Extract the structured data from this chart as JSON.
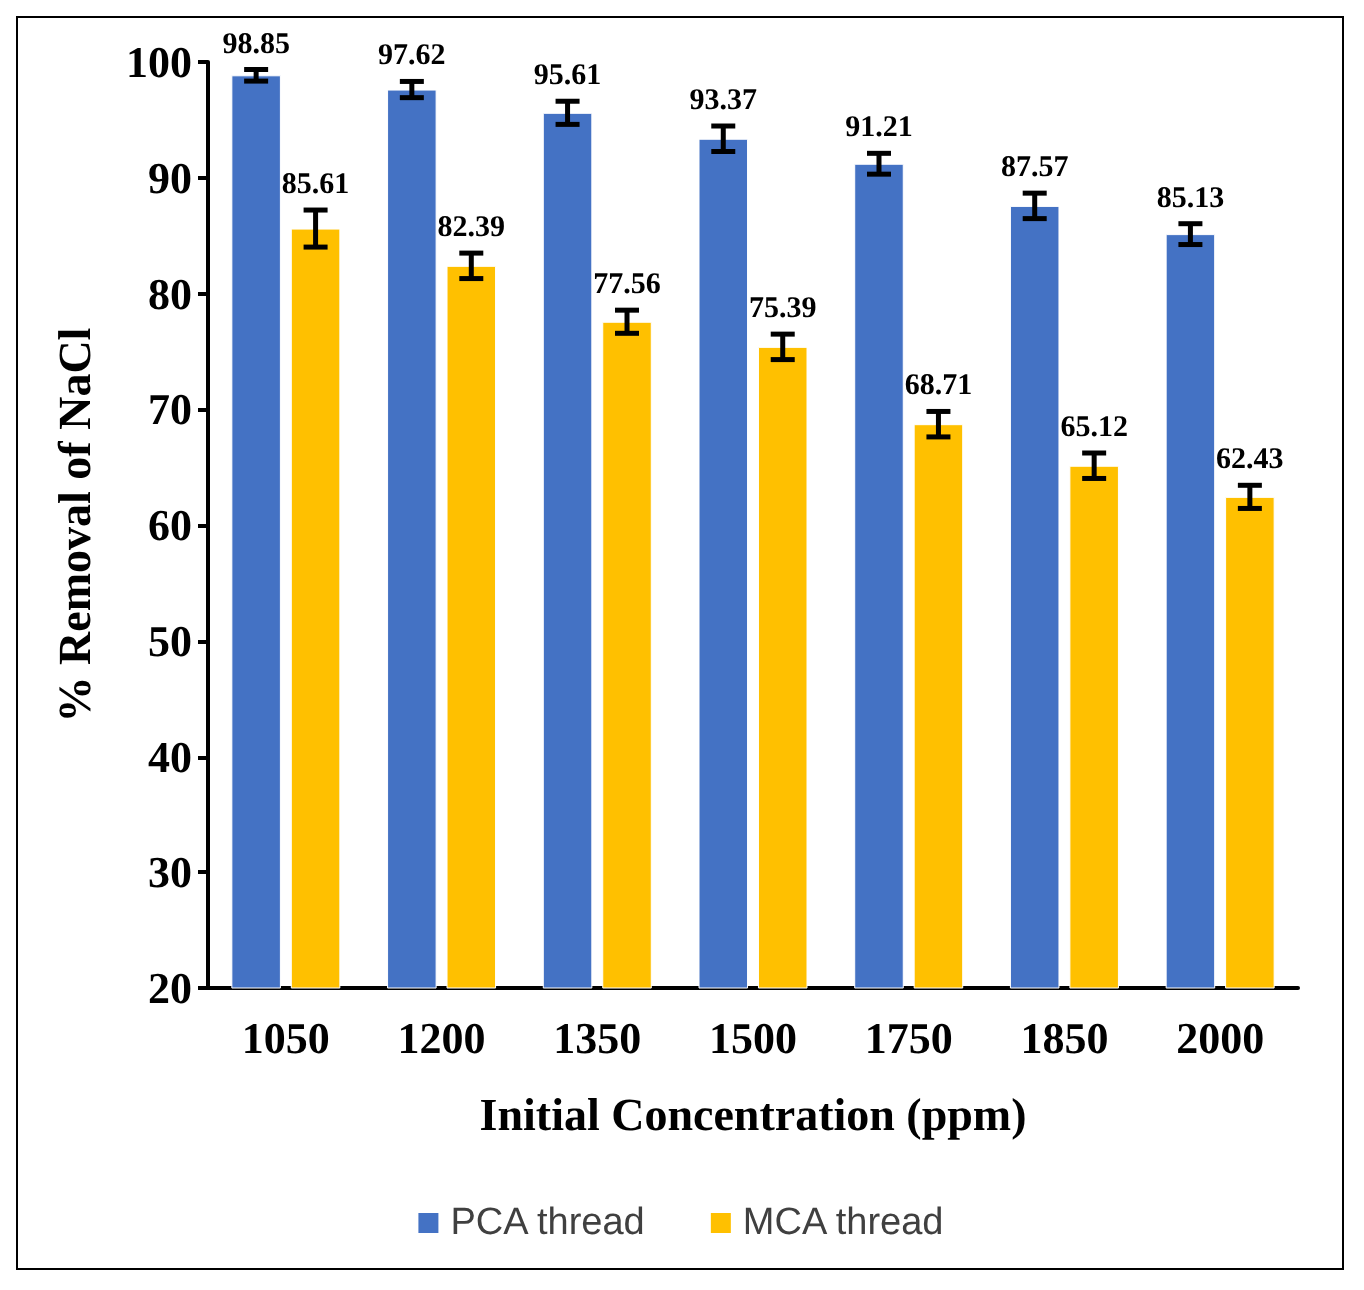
{
  "chart_data": {
    "type": "bar",
    "xlabel": "Initial Concentration (ppm)",
    "ylabel": "% Removal of NaCl",
    "categories": [
      "1050",
      "1200",
      "1350",
      "1500",
      "1750",
      "1850",
      "2000"
    ],
    "series": [
      {
        "name": "PCA thread",
        "color": "#4472c4",
        "values": [
          98.85,
          97.62,
          95.61,
          93.37,
          91.21,
          87.57,
          85.13
        ],
        "errors": [
          0.5,
          0.7,
          1.0,
          1.1,
          0.9,
          1.1,
          0.9
        ]
      },
      {
        "name": "MCA thread",
        "color": "#ffc000",
        "values": [
          85.61,
          82.39,
          77.56,
          75.39,
          68.71,
          65.12,
          62.43
        ],
        "errors": [
          1.6,
          1.1,
          1.0,
          1.1,
          1.1,
          1.1,
          1.0
        ]
      }
    ],
    "ylim": [
      20,
      100
    ],
    "yticks": [
      20,
      30,
      40,
      50,
      60,
      70,
      80,
      90,
      100
    ],
    "grid": false,
    "legend": "bottom",
    "data_labels": true
  }
}
